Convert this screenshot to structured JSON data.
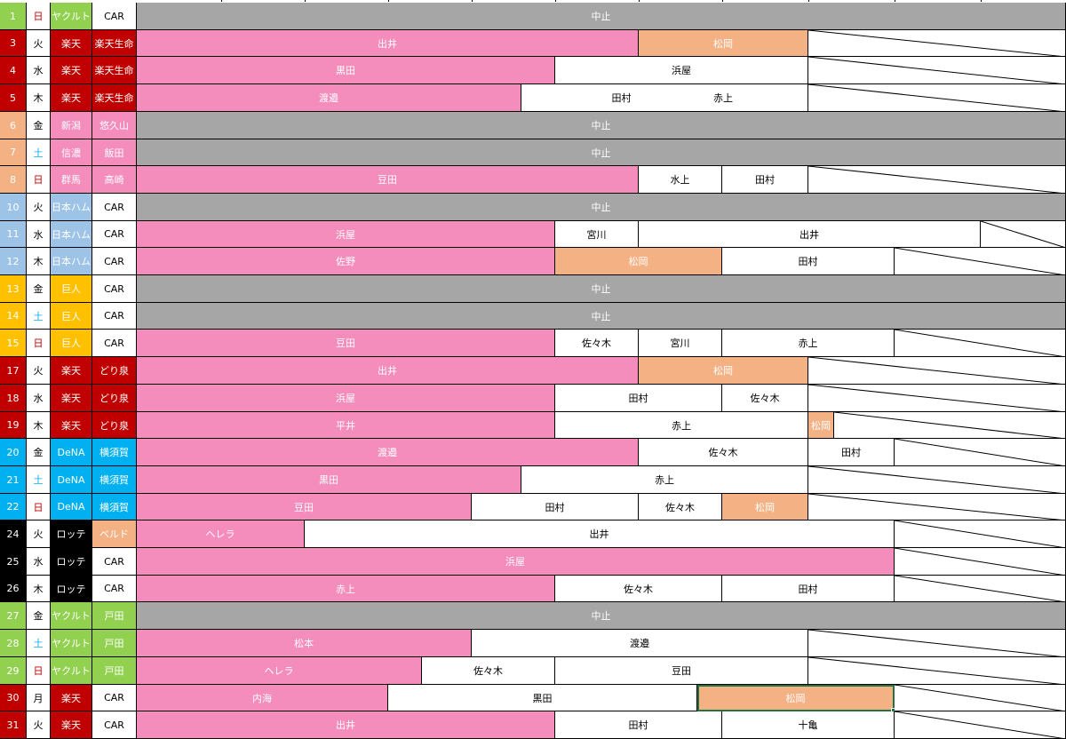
{
  "colors": {
    "pink": "#f48cbc",
    "orange": "#f4b183",
    "gray": "#a6a6a6",
    "red": "#c00000",
    "green": "#92d050",
    "salmon": "#f4b183",
    "lightpink": "#f48cbc",
    "blue": "#9dc3e6",
    "gold": "#ffc000",
    "cyan": "#00b0f0",
    "black": "#000000",
    "white": "#ffffff",
    "selection": "#217346"
  },
  "rows": [
    {
      "day": "1",
      "dow": "日",
      "team": "ヤクルト",
      "venue": "CAR",
      "dayColor": "green",
      "dowColor": "red",
      "teamBg": "green",
      "venueBg": "white",
      "segs": [
        {
          "label": "中止",
          "color": "gray",
          "span": [
            1,
            12
          ]
        }
      ]
    },
    {
      "day": "3",
      "dow": "火",
      "team": "楽天",
      "venue": "楽天生命",
      "dayColor": "red",
      "dowColor": "black",
      "teamBg": "red",
      "venueBg": "red",
      "segs": [
        {
          "label": "出井",
          "color": "pink",
          "span": [
            1,
            6
          ]
        },
        {
          "label": "松岡",
          "color": "orange",
          "span": [
            7,
            8
          ]
        },
        {
          "label": "",
          "color": "slash",
          "span": [
            9,
            12
          ]
        }
      ]
    },
    {
      "day": "4",
      "dow": "水",
      "team": "楽天",
      "venue": "楽天生命",
      "dayColor": "red",
      "dowColor": "black",
      "teamBg": "red",
      "venueBg": "red",
      "segs": [
        {
          "label": "黒田",
          "color": "pink",
          "span": [
            1,
            5
          ]
        },
        {
          "label": "浜屋",
          "color": "white",
          "span": [
            6,
            8
          ]
        },
        {
          "label": "",
          "color": "slash",
          "span": [
            9,
            12
          ]
        }
      ]
    },
    {
      "day": "5",
      "dow": "木",
      "team": "楽天",
      "venue": "楽天生命",
      "dayColor": "red",
      "dowColor": "black",
      "teamBg": "red",
      "venueBg": "red",
      "segs": [
        {
          "label": "渡邉",
          "color": "pink",
          "span": [
            1,
            5.6
          ]
        },
        {
          "label": "田村",
          "color": "white",
          "span": [
            5.6,
            7
          ]
        },
        {
          "label": "赤上",
          "color": "white",
          "span": [
            7,
            8
          ]
        },
        {
          "label": "",
          "color": "slash",
          "span": [
            9,
            12
          ]
        }
      ]
    },
    {
      "day": "6",
      "dow": "金",
      "team": "新潟",
      "venue": "悠久山",
      "dayColor": "salmon",
      "dowColor": "black",
      "teamBg": "lightpink",
      "venueBg": "lightpink",
      "segs": [
        {
          "label": "中止",
          "color": "gray",
          "span": [
            1,
            12
          ]
        }
      ]
    },
    {
      "day": "7",
      "dow": "土",
      "team": "信濃",
      "venue": "飯田",
      "dayColor": "salmon",
      "dowColor": "cyan",
      "teamBg": "lightpink",
      "venueBg": "lightpink",
      "segs": [
        {
          "label": "中止",
          "color": "gray",
          "span": [
            1,
            12
          ]
        }
      ]
    },
    {
      "day": "8",
      "dow": "日",
      "team": "群馬",
      "venue": "高崎",
      "dayColor": "salmon",
      "dowColor": "red",
      "teamBg": "lightpink",
      "venueBg": "lightpink",
      "segs": [
        {
          "label": "豆田",
          "color": "pink",
          "span": [
            1,
            6
          ]
        },
        {
          "label": "水上",
          "color": "white",
          "span": [
            7,
            7
          ]
        },
        {
          "label": "田村",
          "color": "white",
          "span": [
            8,
            8
          ]
        },
        {
          "label": "",
          "color": "slash",
          "span": [
            9,
            12
          ]
        }
      ]
    },
    {
      "day": "10",
      "dow": "火",
      "team": "日本ハム",
      "venue": "CAR",
      "dayColor": "blue",
      "dowColor": "black",
      "teamBg": "blue",
      "venueBg": "white",
      "segs": [
        {
          "label": "中止",
          "color": "gray",
          "span": [
            1,
            12
          ]
        }
      ]
    },
    {
      "day": "11",
      "dow": "水",
      "team": "日本ハム",
      "venue": "CAR",
      "dayColor": "blue",
      "dowColor": "black",
      "teamBg": "blue",
      "venueBg": "white",
      "segs": [
        {
          "label": "浜屋",
          "color": "pink",
          "span": [
            1,
            5
          ]
        },
        {
          "label": "宮川",
          "color": "white",
          "span": [
            6,
            6
          ]
        },
        {
          "label": "出井",
          "color": "white",
          "span": [
            7,
            10
          ]
        },
        {
          "label": "",
          "color": "slash",
          "span": [
            11,
            12
          ]
        }
      ]
    },
    {
      "day": "12",
      "dow": "木",
      "team": "日本ハム",
      "venue": "CAR",
      "dayColor": "blue",
      "dowColor": "black",
      "teamBg": "blue",
      "venueBg": "white",
      "segs": [
        {
          "label": "佐野",
          "color": "pink",
          "span": [
            1,
            5
          ]
        },
        {
          "label": "松岡",
          "color": "orange",
          "span": [
            6,
            7
          ]
        },
        {
          "label": "田村",
          "color": "white",
          "span": [
            8,
            9
          ]
        },
        {
          "label": "",
          "color": "slash",
          "span": [
            10,
            12
          ]
        }
      ]
    },
    {
      "day": "13",
      "dow": "金",
      "team": "巨人",
      "venue": "CAR",
      "dayColor": "gold",
      "dowColor": "black",
      "teamBg": "gold",
      "venueBg": "white",
      "segs": [
        {
          "label": "中止",
          "color": "gray",
          "span": [
            1,
            12
          ]
        }
      ]
    },
    {
      "day": "14",
      "dow": "土",
      "team": "巨人",
      "venue": "CAR",
      "dayColor": "gold",
      "dowColor": "cyan",
      "teamBg": "gold",
      "venueBg": "white",
      "segs": [
        {
          "label": "中止",
          "color": "gray",
          "span": [
            1,
            12
          ]
        }
      ]
    },
    {
      "day": "15",
      "dow": "日",
      "team": "巨人",
      "venue": "CAR",
      "dayColor": "gold",
      "dowColor": "red",
      "teamBg": "gold",
      "venueBg": "white",
      "segs": [
        {
          "label": "豆田",
          "color": "pink",
          "span": [
            1,
            5
          ]
        },
        {
          "label": "佐々木",
          "color": "white",
          "span": [
            6,
            6
          ]
        },
        {
          "label": "宮川",
          "color": "white",
          "span": [
            7,
            7
          ]
        },
        {
          "label": "赤上",
          "color": "white",
          "span": [
            8,
            9
          ]
        },
        {
          "label": "",
          "color": "slash",
          "span": [
            10,
            12
          ]
        }
      ]
    },
    {
      "day": "17",
      "dow": "火",
      "team": "楽天",
      "venue": "どり泉",
      "dayColor": "red",
      "dowColor": "black",
      "teamBg": "red",
      "venueBg": "red",
      "segs": [
        {
          "label": "出井",
          "color": "pink",
          "span": [
            1,
            6
          ]
        },
        {
          "label": "松岡",
          "color": "orange",
          "span": [
            7,
            8
          ]
        },
        {
          "label": "",
          "color": "slash",
          "span": [
            9,
            12
          ]
        }
      ]
    },
    {
      "day": "18",
      "dow": "水",
      "team": "楽天",
      "venue": "どり泉",
      "dayColor": "red",
      "dowColor": "black",
      "teamBg": "red",
      "venueBg": "red",
      "segs": [
        {
          "label": "浜屋",
          "color": "pink",
          "span": [
            1,
            5
          ]
        },
        {
          "label": "田村",
          "color": "white",
          "span": [
            6,
            7
          ]
        },
        {
          "label": "佐々木",
          "color": "white",
          "span": [
            8,
            8
          ]
        },
        {
          "label": "",
          "color": "slash",
          "span": [
            9,
            12
          ]
        }
      ]
    },
    {
      "day": "19",
      "dow": "木",
      "team": "楽天",
      "venue": "どり泉",
      "dayColor": "red",
      "dowColor": "black",
      "teamBg": "red",
      "venueBg": "red",
      "segs": [
        {
          "label": "平井",
          "color": "pink",
          "span": [
            1,
            5
          ]
        },
        {
          "label": "赤上",
          "color": "white",
          "span": [
            6,
            8
          ]
        },
        {
          "label": "松岡",
          "color": "orange",
          "span": [
            9,
            9.3
          ]
        },
        {
          "label": "",
          "color": "slash",
          "span": [
            9.3,
            12
          ]
        }
      ]
    },
    {
      "day": "20",
      "dow": "金",
      "team": "DeNA",
      "venue": "横須賀",
      "dayColor": "cyan",
      "dowColor": "black",
      "teamBg": "cyan",
      "venueBg": "cyan",
      "segs": [
        {
          "label": "渡邉",
          "color": "pink",
          "span": [
            1,
            6
          ]
        },
        {
          "label": "佐々木",
          "color": "white",
          "span": [
            7,
            8
          ]
        },
        {
          "label": "田村",
          "color": "white",
          "span": [
            9,
            9
          ]
        },
        {
          "label": "",
          "color": "slash",
          "span": [
            10,
            12
          ]
        }
      ]
    },
    {
      "day": "21",
      "dow": "土",
      "team": "DeNA",
      "venue": "横須賀",
      "dayColor": "cyan",
      "dowColor": "cyan",
      "teamBg": "cyan",
      "venueBg": "cyan",
      "segs": [
        {
          "label": "黒田",
          "color": "pink",
          "span": [
            1,
            5.6
          ]
        },
        {
          "label": "赤上",
          "color": "white",
          "span": [
            5.6,
            8
          ]
        },
        {
          "label": "",
          "color": "slash",
          "span": [
            9,
            12
          ]
        }
      ]
    },
    {
      "day": "22",
      "dow": "日",
      "team": "DeNA",
      "venue": "横須賀",
      "dayColor": "cyan",
      "dowColor": "red",
      "teamBg": "cyan",
      "venueBg": "cyan",
      "segs": [
        {
          "label": "豆田",
          "color": "pink",
          "span": [
            1,
            4
          ]
        },
        {
          "label": "田村",
          "color": "white",
          "span": [
            5,
            6
          ]
        },
        {
          "label": "佐々木",
          "color": "white",
          "span": [
            7,
            7
          ]
        },
        {
          "label": "松岡",
          "color": "orange",
          "span": [
            8,
            8
          ]
        },
        {
          "label": "",
          "color": "slash",
          "span": [
            9,
            12
          ]
        }
      ]
    },
    {
      "day": "24",
      "dow": "火",
      "team": "ロッテ",
      "venue": "ベルド",
      "dayColor": "black",
      "dowColor": "black",
      "teamBg": "black",
      "venueBg": "orange",
      "segs": [
        {
          "label": "ヘレラ",
          "color": "pink",
          "span": [
            1,
            2
          ]
        },
        {
          "label": "出井",
          "color": "white",
          "span": [
            3,
            9
          ]
        },
        {
          "label": "",
          "color": "slash",
          "span": [
            10,
            12
          ]
        }
      ]
    },
    {
      "day": "25",
      "dow": "水",
      "team": "ロッテ",
      "venue": "CAR",
      "dayColor": "black",
      "dowColor": "black",
      "teamBg": "black",
      "venueBg": "white",
      "segs": [
        {
          "label": "浜屋",
          "color": "pink",
          "span": [
            1,
            9
          ]
        },
        {
          "label": "",
          "color": "slash",
          "span": [
            10,
            12
          ]
        }
      ]
    },
    {
      "day": "26",
      "dow": "木",
      "team": "ロッテ",
      "venue": "CAR",
      "dayColor": "black",
      "dowColor": "black",
      "teamBg": "black",
      "venueBg": "white",
      "segs": [
        {
          "label": "赤上",
          "color": "pink",
          "span": [
            1,
            5
          ]
        },
        {
          "label": "佐々木",
          "color": "white",
          "span": [
            6,
            7
          ]
        },
        {
          "label": "田村",
          "color": "white",
          "span": [
            8,
            9
          ]
        },
        {
          "label": "",
          "color": "slash",
          "span": [
            10,
            12
          ]
        }
      ]
    },
    {
      "day": "27",
      "dow": "金",
      "team": "ヤクルト",
      "venue": "戸田",
      "dayColor": "green",
      "dowColor": "black",
      "teamBg": "green",
      "venueBg": "green",
      "segs": [
        {
          "label": "中止",
          "color": "gray",
          "span": [
            1,
            12
          ]
        }
      ]
    },
    {
      "day": "28",
      "dow": "土",
      "team": "ヤクルト",
      "venue": "戸田",
      "dayColor": "green",
      "dowColor": "cyan",
      "teamBg": "green",
      "venueBg": "green",
      "segs": [
        {
          "label": "松本",
          "color": "pink",
          "span": [
            1,
            4
          ]
        },
        {
          "label": "渡邉",
          "color": "white",
          "span": [
            5,
            8
          ]
        },
        {
          "label": "",
          "color": "slash",
          "span": [
            9,
            12
          ]
        }
      ]
    },
    {
      "day": "29",
      "dow": "日",
      "team": "ヤクルト",
      "venue": "戸田",
      "dayColor": "green",
      "dowColor": "red",
      "teamBg": "green",
      "venueBg": "green",
      "segs": [
        {
          "label": "ヘレラ",
          "color": "pink",
          "span": [
            1,
            4.4
          ]
        },
        {
          "label": "佐々木",
          "color": "white",
          "span": [
            4.4,
            5
          ]
        },
        {
          "label": "豆田",
          "color": "white",
          "span": [
            6,
            8
          ]
        },
        {
          "label": "",
          "color": "slash",
          "span": [
            9,
            12
          ]
        }
      ]
    },
    {
      "day": "30",
      "dow": "月",
      "team": "楽天",
      "venue": "CAR",
      "dayColor": "red",
      "dowColor": "black",
      "teamBg": "red",
      "venueBg": "white",
      "segs": [
        {
          "label": "内海",
          "color": "pink",
          "span": [
            1,
            3
          ]
        },
        {
          "label": "黒田",
          "color": "white",
          "span": [
            4,
            7.7
          ]
        },
        {
          "label": "松岡",
          "color": "orange",
          "span": [
            7.7,
            9
          ],
          "selected": true
        },
        {
          "label": "",
          "color": "slash",
          "span": [
            10,
            12
          ]
        }
      ]
    },
    {
      "day": "31",
      "dow": "火",
      "team": "楽天",
      "venue": "CAR",
      "dayColor": "red",
      "dowColor": "black",
      "teamBg": "red",
      "venueBg": "white",
      "segs": [
        {
          "label": "出井",
          "color": "pink",
          "span": [
            1,
            5
          ]
        },
        {
          "label": "田村",
          "color": "white",
          "span": [
            6,
            7
          ]
        },
        {
          "label": "十亀",
          "color": "white",
          "span": [
            8,
            9
          ]
        },
        {
          "label": "",
          "color": "slash",
          "span": [
            10,
            12
          ]
        }
      ]
    }
  ]
}
